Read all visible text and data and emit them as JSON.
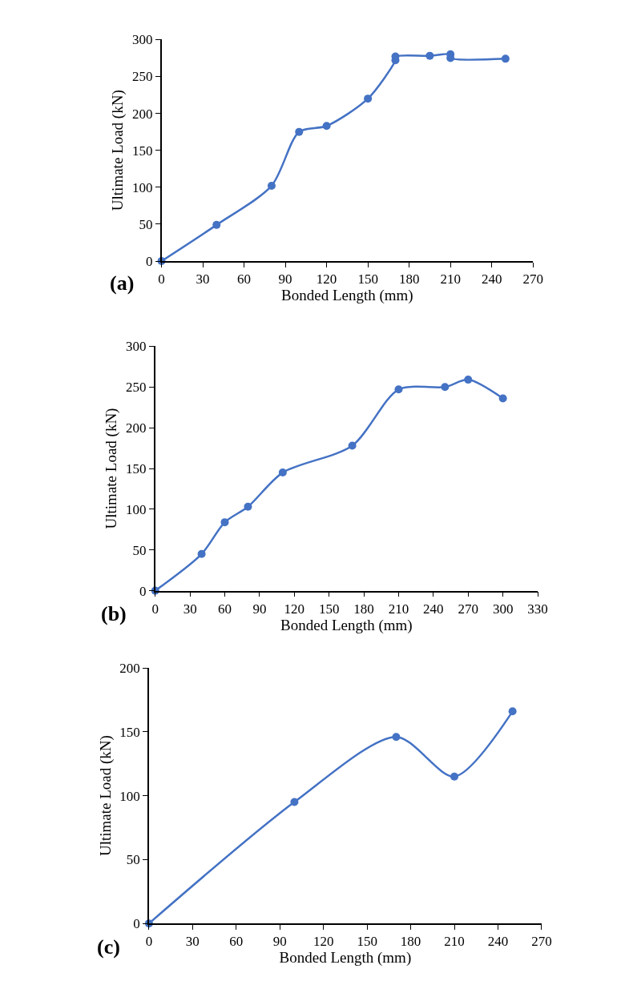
{
  "chart_data": [
    {
      "type": "line",
      "xlabel": "Bonded Length (mm)",
      "ylabel": "Ultimate Load (kN)",
      "annotations": [
        "(a)"
      ],
      "series": [
        {
          "color": "#4472c4",
          "x": [
            0,
            40,
            80,
            100,
            120,
            150,
            170,
            170,
            195,
            210,
            210,
            250
          ],
          "values": [
            0,
            49,
            102,
            175,
            183,
            220,
            272,
            277,
            278,
            280,
            275,
            274
          ]
        }
      ],
      "xlim": [
        0,
        270
      ],
      "xticks": [
        0,
        30,
        60,
        90,
        120,
        150,
        180,
        210,
        240,
        270
      ],
      "ylim": [
        0,
        300
      ],
      "yticks": [
        0,
        50,
        100,
        150,
        200,
        250,
        300
      ],
      "marker": "circle",
      "line_style": "solid"
    },
    {
      "type": "line",
      "xlabel": "Bonded Length (mm)",
      "ylabel": "Ultimate Load (kN)",
      "annotations": [
        "(b)"
      ],
      "series": [
        {
          "color": "#4472c4",
          "x": [
            0,
            40,
            60,
            80,
            110,
            170,
            210,
            250,
            270,
            300
          ],
          "values": [
            0,
            45,
            84,
            103,
            145,
            178,
            247,
            250,
            259,
            236
          ]
        }
      ],
      "xlim": [
        0,
        330
      ],
      "xticks": [
        0,
        30,
        60,
        90,
        120,
        150,
        180,
        210,
        240,
        270,
        300,
        330
      ],
      "ylim": [
        0,
        300
      ],
      "yticks": [
        0,
        50,
        100,
        150,
        200,
        250,
        300
      ],
      "marker": "circle",
      "line_style": "solid"
    },
    {
      "type": "line",
      "xlabel": "Bonded Length (mm)",
      "ylabel": "Ultimate Load (kN)",
      "annotations": [
        "(c)"
      ],
      "series": [
        {
          "color": "#4472c4",
          "x": [
            0,
            100,
            170,
            210,
            250
          ],
          "values": [
            0,
            95,
            146,
            115,
            166
          ]
        }
      ],
      "xlim": [
        0,
        270
      ],
      "xticks": [
        0,
        30,
        60,
        90,
        120,
        150,
        180,
        210,
        240,
        270
      ],
      "ylim": [
        0,
        200
      ],
      "yticks": [
        0,
        50,
        100,
        150,
        200
      ],
      "marker": "circle",
      "line_style": "solid"
    }
  ]
}
